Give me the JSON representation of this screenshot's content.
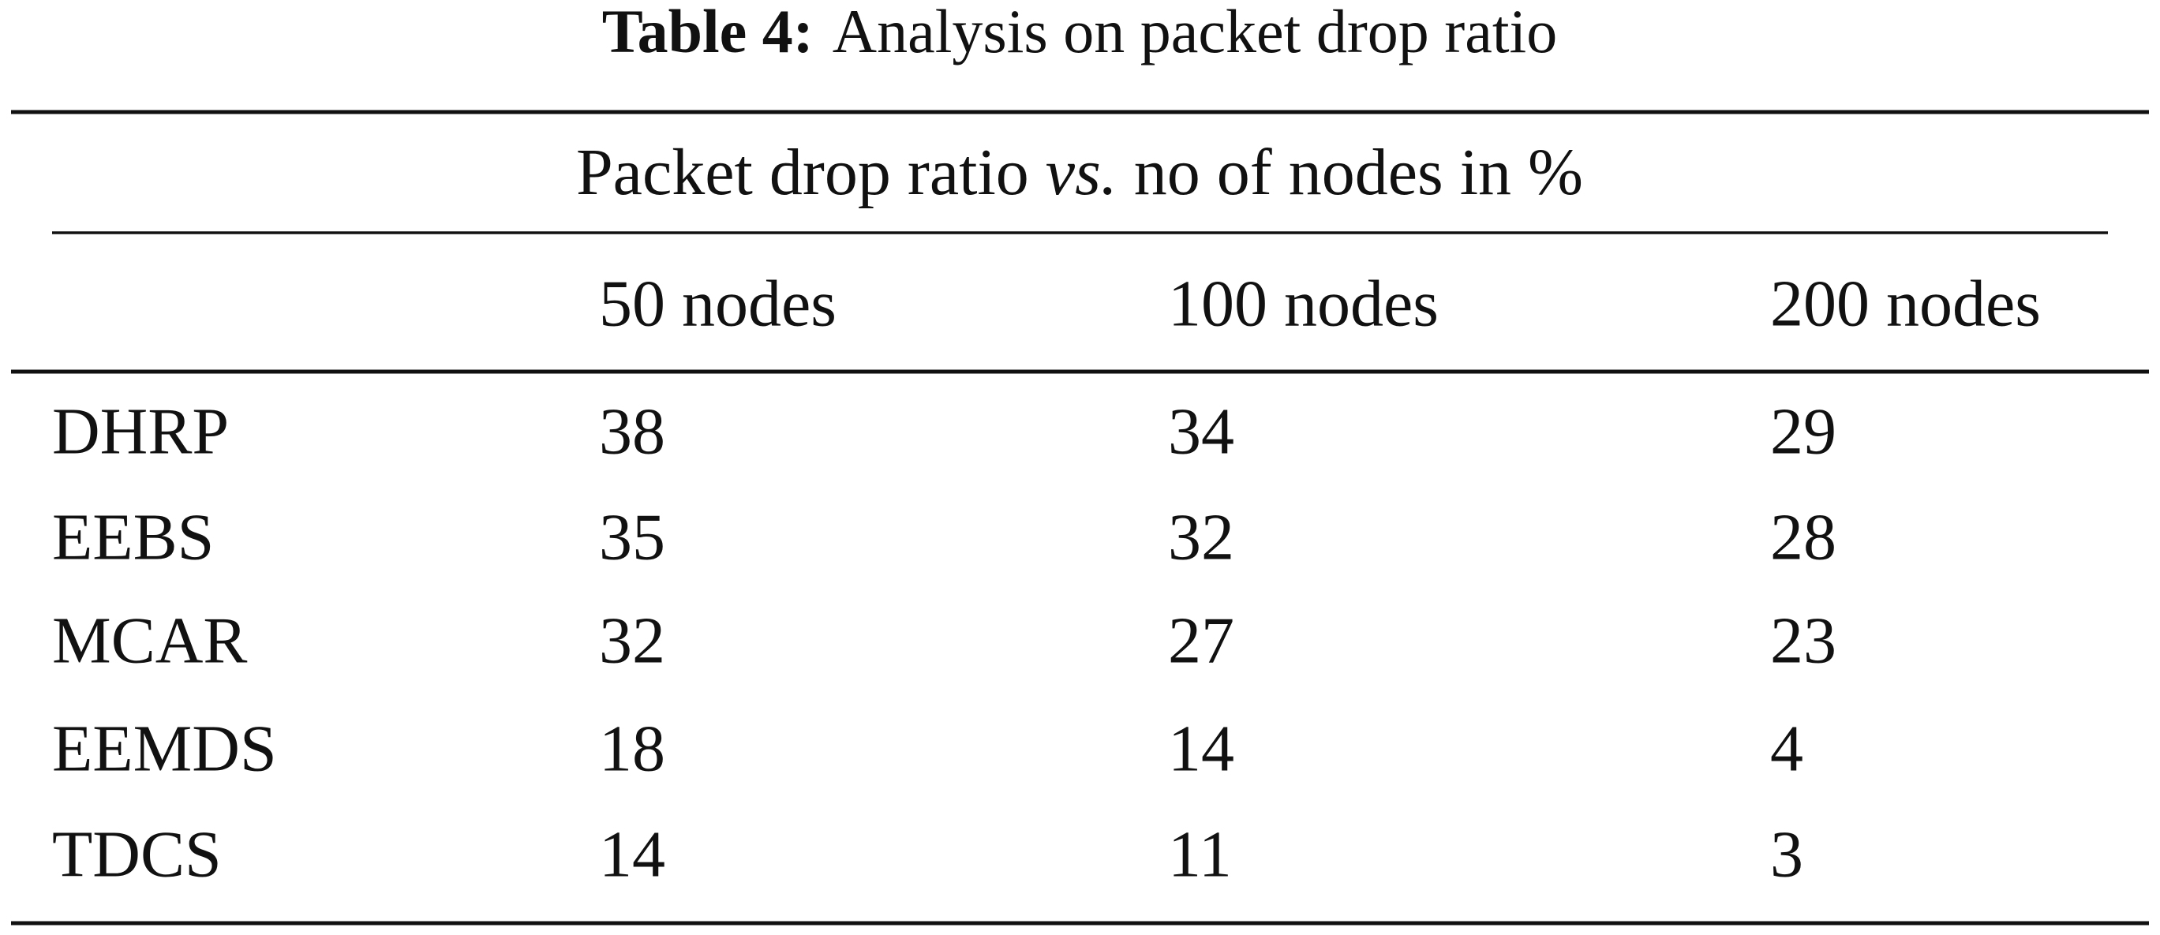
{
  "header": {
    "label": "Table 4:",
    "title": "Analysis on packet drop ratio"
  },
  "table": {
    "group": [
      "Packet drop ratio ",
      "vs.",
      " no of nodes in %"
    ],
    "columns": [
      "50 nodes",
      "100 nodes",
      "200 nodes"
    ],
    "rows": [
      [
        "DHRP",
        38,
        34,
        29
      ],
      [
        "EEBS",
        35,
        32,
        28
      ],
      [
        "MCAR",
        32,
        27,
        23
      ],
      [
        "EEMDS",
        18,
        14,
        4
      ],
      [
        "TDCS",
        14,
        11,
        3
      ]
    ]
  }
}
